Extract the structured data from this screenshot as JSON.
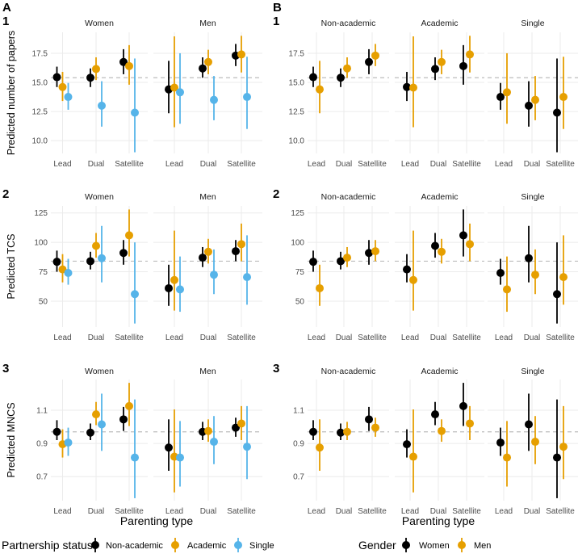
{
  "panel_tags": [
    "A",
    "B"
  ],
  "row_tags": [
    "1",
    "2",
    "3"
  ],
  "xlabel": "Parenting type",
  "categories": [
    "Lead",
    "Dual",
    "Satellite"
  ],
  "genders": [
    "Women",
    "Men"
  ],
  "partnerships": [
    "Non-academic",
    "Academic",
    "Single"
  ],
  "colors": {
    "Non-academic": "#000000",
    "Academic": "#E69F00",
    "Single": "#56B4E9",
    "Women": "#000000",
    "Men": "#E69F00",
    "reference_line": "#bdbdbd",
    "grid": "#ebebeb"
  },
  "legend_a": {
    "title": "Partnership status",
    "items": [
      "Non-academic",
      "Academic",
      "Single"
    ]
  },
  "legend_b": {
    "title": "Gender",
    "items": [
      "Women",
      "Men"
    ]
  },
  "chart_data": {
    "type": "scatter",
    "description_of_marks": "point estimates with confidence intervals",
    "panel_a": {
      "facet_by": "gender",
      "color_by": "partnership"
    },
    "panel_b": {
      "facet_by": "partnership",
      "color_by": "gender"
    },
    "grid": true,
    "legend_position": "bottom",
    "rows": [
      {
        "ylabel": "Predicted number of papers",
        "ylim": [
          8.9,
          19.3
        ],
        "yticks": [
          10.0,
          12.5,
          15.0,
          17.5
        ],
        "ytick_labels": [
          "10.0",
          "12.5",
          "15.0",
          "17.5"
        ],
        "reference_line": 15.4,
        "points": [
          {
            "gender": "Women",
            "parenting": "Lead",
            "partnership": "Non-academic",
            "est": 15.45,
            "lo": 14.6,
            "hi": 16.35
          },
          {
            "gender": "Women",
            "parenting": "Lead",
            "partnership": "Academic",
            "est": 14.6,
            "lo": 13.4,
            "hi": 15.9
          },
          {
            "gender": "Women",
            "parenting": "Lead",
            "partnership": "Single",
            "est": 13.75,
            "lo": 12.65,
            "hi": 14.95
          },
          {
            "gender": "Women",
            "parenting": "Dual",
            "partnership": "Non-academic",
            "est": 15.4,
            "lo": 14.6,
            "hi": 16.2
          },
          {
            "gender": "Women",
            "parenting": "Dual",
            "partnership": "Academic",
            "est": 16.15,
            "lo": 15.2,
            "hi": 17.15
          },
          {
            "gender": "Women",
            "parenting": "Dual",
            "partnership": "Single",
            "est": 13.0,
            "lo": 11.2,
            "hi": 15.1
          },
          {
            "gender": "Women",
            "parenting": "Satellite",
            "partnership": "Non-academic",
            "est": 16.75,
            "lo": 15.7,
            "hi": 17.85
          },
          {
            "gender": "Women",
            "parenting": "Satellite",
            "partnership": "Academic",
            "est": 16.4,
            "lo": 14.8,
            "hi": 18.2
          },
          {
            "gender": "Women",
            "parenting": "Satellite",
            "partnership": "Single",
            "est": 12.4,
            "lo": 9.0,
            "hi": 17.05
          },
          {
            "gender": "Men",
            "parenting": "Lead",
            "partnership": "Non-academic",
            "est": 14.4,
            "lo": 12.35,
            "hi": 16.85
          },
          {
            "gender": "Men",
            "parenting": "Lead",
            "partnership": "Academic",
            "est": 14.55,
            "lo": 11.15,
            "hi": 18.95
          },
          {
            "gender": "Men",
            "parenting": "Lead",
            "partnership": "Single",
            "est": 14.15,
            "lo": 11.45,
            "hi": 17.5
          },
          {
            "gender": "Men",
            "parenting": "Dual",
            "partnership": "Non-academic",
            "est": 16.2,
            "lo": 15.4,
            "hi": 17.15
          },
          {
            "gender": "Men",
            "parenting": "Dual",
            "partnership": "Academic",
            "est": 16.75,
            "lo": 15.7,
            "hi": 17.8
          },
          {
            "gender": "Men",
            "parenting": "Dual",
            "partnership": "Single",
            "est": 13.5,
            "lo": 11.75,
            "hi": 15.55
          },
          {
            "gender": "Men",
            "parenting": "Satellite",
            "partnership": "Non-academic",
            "est": 17.3,
            "lo": 16.4,
            "hi": 18.3
          },
          {
            "gender": "Men",
            "parenting": "Satellite",
            "partnership": "Academic",
            "est": 17.4,
            "lo": 15.85,
            "hi": 19.0
          },
          {
            "gender": "Men",
            "parenting": "Satellite",
            "partnership": "Single",
            "est": 13.75,
            "lo": 11.0,
            "hi": 17.2
          }
        ]
      },
      {
        "ylabel": "Predicted TCS",
        "ylim": [
          28,
          131
        ],
        "yticks": [
          50,
          75,
          100,
          125
        ],
        "ytick_labels": [
          "50",
          "75",
          "100",
          "125"
        ],
        "reference_line": 84,
        "points": [
          {
            "gender": "Women",
            "parenting": "Lead",
            "partnership": "Non-academic",
            "est": 83.5,
            "lo": 75,
            "hi": 93
          },
          {
            "gender": "Women",
            "parenting": "Lead",
            "partnership": "Academic",
            "est": 77,
            "lo": 66,
            "hi": 90
          },
          {
            "gender": "Women",
            "parenting": "Lead",
            "partnership": "Single",
            "est": 74,
            "lo": 64,
            "hi": 86
          },
          {
            "gender": "Women",
            "parenting": "Dual",
            "partnership": "Non-academic",
            "est": 84,
            "lo": 77,
            "hi": 92
          },
          {
            "gender": "Women",
            "parenting": "Dual",
            "partnership": "Academic",
            "est": 97,
            "lo": 87,
            "hi": 108
          },
          {
            "gender": "Women",
            "parenting": "Dual",
            "partnership": "Single",
            "est": 86.5,
            "lo": 66,
            "hi": 114
          },
          {
            "gender": "Women",
            "parenting": "Satellite",
            "partnership": "Non-academic",
            "est": 91,
            "lo": 81,
            "hi": 102
          },
          {
            "gender": "Women",
            "parenting": "Satellite",
            "partnership": "Academic",
            "est": 106,
            "lo": 88,
            "hi": 128
          },
          {
            "gender": "Women",
            "parenting": "Satellite",
            "partnership": "Single",
            "est": 56,
            "lo": 31,
            "hi": 100
          },
          {
            "gender": "Men",
            "parenting": "Lead",
            "partnership": "Non-academic",
            "est": 61,
            "lo": 46,
            "hi": 81
          },
          {
            "gender": "Men",
            "parenting": "Lead",
            "partnership": "Academic",
            "est": 68,
            "lo": 42,
            "hi": 110
          },
          {
            "gender": "Men",
            "parenting": "Lead",
            "partnership": "Single",
            "est": 60,
            "lo": 41,
            "hi": 88
          },
          {
            "gender": "Men",
            "parenting": "Dual",
            "partnership": "Non-academic",
            "est": 87,
            "lo": 79,
            "hi": 96
          },
          {
            "gender": "Men",
            "parenting": "Dual",
            "partnership": "Academic",
            "est": 92,
            "lo": 82,
            "hi": 103
          },
          {
            "gender": "Men",
            "parenting": "Dual",
            "partnership": "Single",
            "est": 72.5,
            "lo": 56,
            "hi": 94
          },
          {
            "gender": "Men",
            "parenting": "Satellite",
            "partnership": "Non-academic",
            "est": 92.5,
            "lo": 84,
            "hi": 102
          },
          {
            "gender": "Men",
            "parenting": "Satellite",
            "partnership": "Academic",
            "est": 98.5,
            "lo": 84,
            "hi": 116
          },
          {
            "gender": "Men",
            "parenting": "Satellite",
            "partnership": "Single",
            "est": 70.5,
            "lo": 47,
            "hi": 106
          }
        ]
      },
      {
        "ylabel": "Predicted MNCS",
        "ylim": [
          0.555,
          1.285
        ],
        "yticks": [
          0.7,
          0.9,
          1.1
        ],
        "ytick_labels": [
          "0.7",
          "0.9",
          "1.1"
        ],
        "reference_line": 0.97,
        "points": [
          {
            "gender": "Women",
            "parenting": "Lead",
            "partnership": "Non-academic",
            "est": 0.97,
            "lo": 0.92,
            "hi": 1.04
          },
          {
            "gender": "Women",
            "parenting": "Lead",
            "partnership": "Academic",
            "est": 0.895,
            "lo": 0.815,
            "hi": 0.985
          },
          {
            "gender": "Women",
            "parenting": "Lead",
            "partnership": "Single",
            "est": 0.905,
            "lo": 0.825,
            "hi": 0.995
          },
          {
            "gender": "Women",
            "parenting": "Dual",
            "partnership": "Non-academic",
            "est": 0.965,
            "lo": 0.92,
            "hi": 1.02
          },
          {
            "gender": "Women",
            "parenting": "Dual",
            "partnership": "Academic",
            "est": 1.075,
            "lo": 1.01,
            "hi": 1.15
          },
          {
            "gender": "Women",
            "parenting": "Dual",
            "partnership": "Single",
            "est": 1.015,
            "lo": 0.855,
            "hi": 1.2
          },
          {
            "gender": "Women",
            "parenting": "Satellite",
            "partnership": "Non-academic",
            "est": 1.045,
            "lo": 0.975,
            "hi": 1.12
          },
          {
            "gender": "Women",
            "parenting": "Satellite",
            "partnership": "Academic",
            "est": 1.125,
            "lo": 1.005,
            "hi": 1.265
          },
          {
            "gender": "Women",
            "parenting": "Satellite",
            "partnership": "Single",
            "est": 0.815,
            "lo": 0.57,
            "hi": 1.165
          },
          {
            "gender": "Men",
            "parenting": "Lead",
            "partnership": "Non-academic",
            "est": 0.875,
            "lo": 0.735,
            "hi": 1.045
          },
          {
            "gender": "Men",
            "parenting": "Lead",
            "partnership": "Academic",
            "est": 0.82,
            "lo": 0.605,
            "hi": 1.105
          },
          {
            "gender": "Men",
            "parenting": "Lead",
            "partnership": "Single",
            "est": 0.815,
            "lo": 0.64,
            "hi": 1.035
          },
          {
            "gender": "Men",
            "parenting": "Dual",
            "partnership": "Non-academic",
            "est": 0.97,
            "lo": 0.92,
            "hi": 1.03
          },
          {
            "gender": "Men",
            "parenting": "Dual",
            "partnership": "Academic",
            "est": 0.975,
            "lo": 0.91,
            "hi": 1.045
          },
          {
            "gender": "Men",
            "parenting": "Dual",
            "partnership": "Single",
            "est": 0.91,
            "lo": 0.775,
            "hi": 1.065
          },
          {
            "gender": "Men",
            "parenting": "Satellite",
            "partnership": "Non-academic",
            "est": 0.995,
            "lo": 0.94,
            "hi": 1.055
          },
          {
            "gender": "Men",
            "parenting": "Satellite",
            "partnership": "Academic",
            "est": 1.02,
            "lo": 0.92,
            "hi": 1.125
          },
          {
            "gender": "Men",
            "parenting": "Satellite",
            "partnership": "Single",
            "est": 0.88,
            "lo": 0.685,
            "hi": 1.125
          }
        ]
      }
    ]
  }
}
